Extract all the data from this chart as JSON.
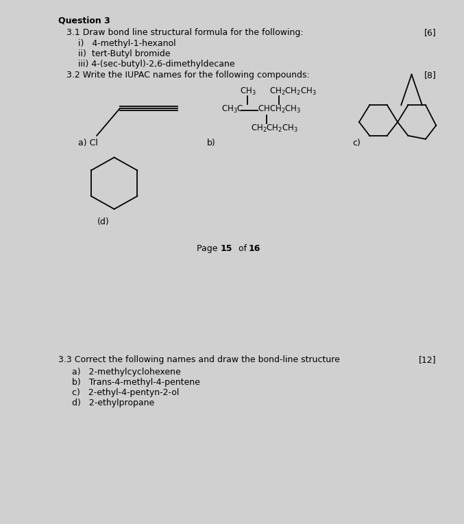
{
  "bg_color": "#d0d0d0",
  "panel_bg": "#ffffff",
  "text_color": "#000000",
  "page1": {
    "title": "Question 3",
    "section31": "3.1 Draw bond line structural formula for the following:",
    "mark31": "[6]",
    "items31": [
      "i)   4-methyl-1-hexanol",
      "ii)  tert-Butyl bromide",
      "iii) 4-(sec-butyl)-2,6-dimethyldecane"
    ],
    "section32": "3.2 Write the IUPAC names for the following compounds:",
    "mark32": "[8]",
    "page_text_pre": "Page ",
    "page_text_bold": "15",
    "page_text_post": " of ",
    "page_text_bold2": "16"
  },
  "page2": {
    "section33": "3.3 Correct the following names and draw the bond-line structure",
    "mark33": "[12]",
    "items33": [
      "a)   2-methylcyclohexene",
      "b)   Trans-4-methyl-4-pentene",
      "c)   2-ethyl-4-pentyn-2-ol",
      "d)   2-ethylpropane"
    ]
  },
  "font_size": 9,
  "font_family": "DejaVu Sans"
}
